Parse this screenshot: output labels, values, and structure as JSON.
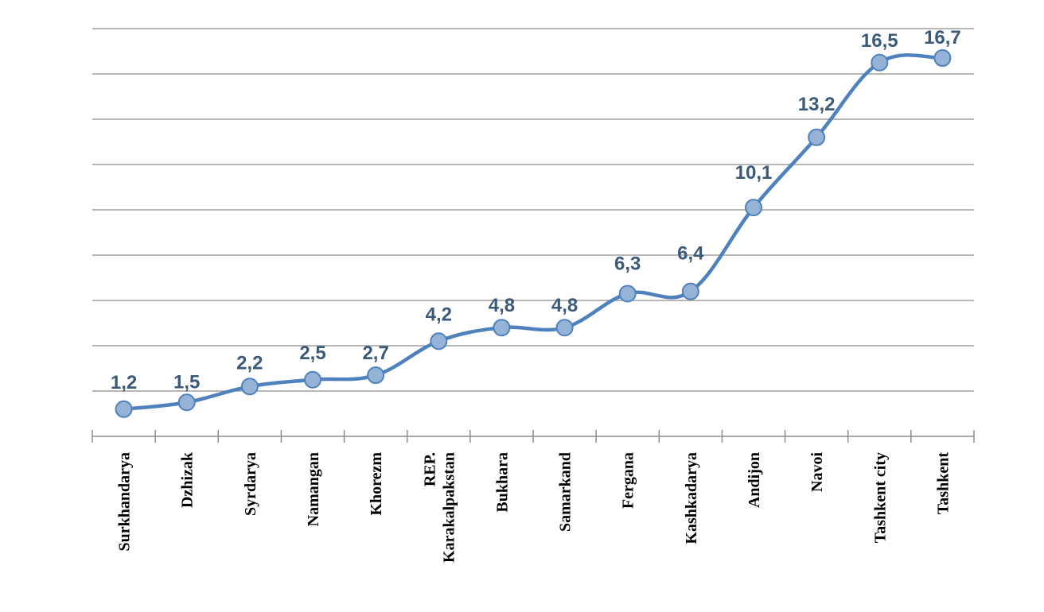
{
  "chart_data": {
    "type": "line",
    "categories": [
      "Surkhandarya",
      "Dzhizak",
      "Syrdarya",
      "Namangan",
      "Khorezm",
      "REP.\nKarakalpakstan",
      "Bukhara",
      "Samarkand",
      "Fergana",
      "Kashkadarya",
      "Andijon",
      "Navoi",
      "Tashkent city",
      "Tashkent"
    ],
    "values": [
      1.2,
      1.5,
      2.2,
      2.5,
      2.7,
      4.2,
      4.8,
      4.8,
      6.3,
      6.4,
      10.1,
      13.2,
      16.5,
      16.7
    ],
    "data_labels": [
      "1,2",
      "1,5",
      "2,2",
      "2,5",
      "2,7",
      "4,2",
      "4,8",
      "4,8",
      "6,3",
      "6,4",
      "10,1",
      "13,2",
      "16,5",
      "16,7"
    ],
    "ylim": [
      0,
      18
    ],
    "grid": true,
    "smooth": true,
    "colors": {
      "line": "#4f81bd",
      "marker": "#95b3d7",
      "label": "#3b5a7a",
      "grid": "#8c8c8c"
    }
  }
}
